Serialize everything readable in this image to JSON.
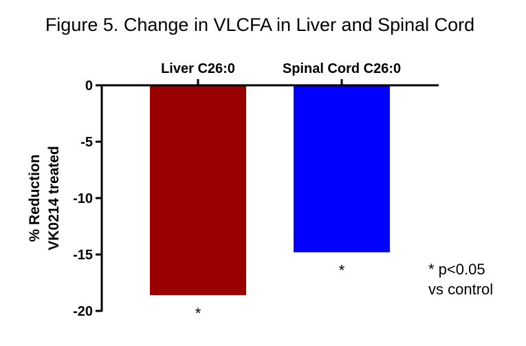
{
  "chart_data": {
    "type": "bar",
    "title": "Figure 5. Change in VLCFA in Liver and Spinal Cord",
    "ylabel_lines": [
      "% Reduction",
      "VK0214 treated"
    ],
    "xlabel": "",
    "categories": [
      "Liver C26:0",
      "Spinal Cord C26:0"
    ],
    "values": [
      -18.6,
      -14.8
    ],
    "bar_colors": [
      "#990000",
      "#0000ff"
    ],
    "significance_marks": [
      "*",
      "*"
    ],
    "ylim": [
      -20,
      0
    ],
    "yticks": [
      0,
      -5,
      -10,
      -15,
      -20
    ],
    "ytick_labels": [
      "0",
      "-5",
      "-10",
      "-15",
      "-20"
    ],
    "category_axis_position": "top",
    "grid": false,
    "annotation_lines": [
      "* p<0.05",
      "vs control"
    ]
  }
}
